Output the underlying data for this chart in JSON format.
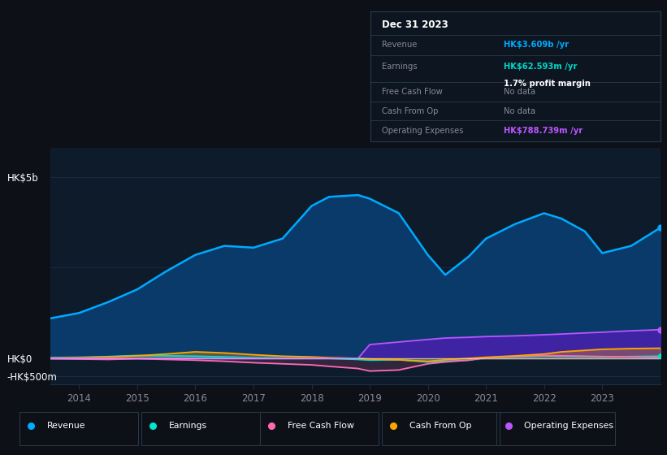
{
  "background_color": "#0d1117",
  "plot_bg_color": "#0d1b2a",
  "years": [
    2013.5,
    2014,
    2014.5,
    2015,
    2015.5,
    2016,
    2016.5,
    2017,
    2017.5,
    2018,
    2018.3,
    2018.8,
    2019,
    2019.5,
    2020,
    2020.3,
    2020.7,
    2021,
    2021.5,
    2022,
    2022.3,
    2022.7,
    2023,
    2023.5,
    2024.0
  ],
  "revenue": [
    1.1,
    1.25,
    1.55,
    1.9,
    2.4,
    2.85,
    3.1,
    3.05,
    3.3,
    4.2,
    4.45,
    4.5,
    4.4,
    4.0,
    2.85,
    2.3,
    2.8,
    3.3,
    3.7,
    4.0,
    3.85,
    3.5,
    2.9,
    3.1,
    3.6
  ],
  "earnings": [
    0.02,
    0.03,
    0.05,
    0.08,
    0.07,
    0.06,
    0.04,
    0.02,
    0.01,
    0.02,
    0.0,
    -0.03,
    -0.05,
    -0.04,
    -0.1,
    -0.08,
    -0.05,
    0.02,
    0.04,
    0.07,
    0.06,
    0.05,
    0.04,
    0.05,
    0.06
  ],
  "free_cash_flow": [
    -0.01,
    -0.02,
    -0.03,
    -0.01,
    -0.03,
    -0.05,
    -0.08,
    -0.12,
    -0.15,
    -0.18,
    -0.22,
    -0.28,
    -0.35,
    -0.32,
    -0.15,
    -0.1,
    -0.05,
    0.02,
    0.05,
    0.08,
    0.07,
    0.06,
    0.05,
    0.04,
    0.02
  ],
  "cash_from_op": [
    0.01,
    0.02,
    0.04,
    0.07,
    0.12,
    0.18,
    0.15,
    0.1,
    0.06,
    0.04,
    0.02,
    0.0,
    -0.02,
    -0.04,
    -0.08,
    -0.04,
    0.0,
    0.03,
    0.07,
    0.12,
    0.18,
    0.22,
    0.25,
    0.27,
    0.28
  ],
  "operating_expenses": [
    0.0,
    0.0,
    0.0,
    0.0,
    0.0,
    0.0,
    0.0,
    0.0,
    0.0,
    0.0,
    0.0,
    0.0,
    0.38,
    0.45,
    0.52,
    0.56,
    0.58,
    0.6,
    0.62,
    0.65,
    0.67,
    0.7,
    0.72,
    0.76,
    0.79
  ],
  "revenue_color": "#00aaff",
  "earnings_color": "#00e5cc",
  "free_cash_flow_color": "#ff69b4",
  "cash_from_op_color": "#ffa500",
  "operating_expenses_color": "#bb55ff",
  "revenue_fill_color": "#0a3a6a",
  "operating_expenses_fill_color": "#4422aa",
  "grid_color": "#1a2f45",
  "text_color": "#888899",
  "white_color": "#ffffff",
  "cyan_color": "#00d8c8",
  "blue_color": "#00aaff",
  "purple_color": "#bb55ff",
  "ylim_min": -0.72,
  "ylim_max": 5.8,
  "ytick_positions": [
    5.0,
    0.0,
    -0.5
  ],
  "ytick_labels": [
    "HK$5b",
    "HK$0",
    "-HK$500m"
  ],
  "xtick_labels": [
    "2014",
    "2015",
    "2016",
    "2017",
    "2018",
    "2019",
    "2020",
    "2021",
    "2022",
    "2023"
  ],
  "xtick_positions": [
    2014,
    2015,
    2016,
    2017,
    2018,
    2019,
    2020,
    2021,
    2022,
    2023
  ],
  "info_box": {
    "date": "Dec 31 2023",
    "revenue_label": "Revenue",
    "revenue_value": "HK$3.609b /yr",
    "earnings_label": "Earnings",
    "earnings_value": "HK$62.593m /yr",
    "earnings_sub": "1.7% profit margin",
    "fcf_label": "Free Cash Flow",
    "fcf_value": "No data",
    "cfop_label": "Cash From Op",
    "cfop_value": "No data",
    "opex_label": "Operating Expenses",
    "opex_value": "HK$788.739m /yr"
  },
  "legend": [
    {
      "label": "Revenue",
      "color": "#00aaff"
    },
    {
      "label": "Earnings",
      "color": "#00e5cc"
    },
    {
      "label": "Free Cash Flow",
      "color": "#ff69b4"
    },
    {
      "label": "Cash From Op",
      "color": "#ffa500"
    },
    {
      "label": "Operating Expenses",
      "color": "#bb55ff"
    }
  ]
}
